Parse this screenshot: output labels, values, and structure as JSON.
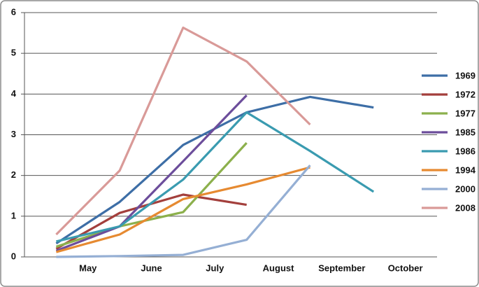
{
  "chart_data": {
    "type": "line",
    "categories": [
      "May",
      "June",
      "July",
      "August",
      "September",
      "October"
    ],
    "ylim": [
      0,
      6
    ],
    "yticks": [
      0,
      1,
      2,
      3,
      4,
      5,
      6
    ],
    "grid": true,
    "legend": "right",
    "series": [
      {
        "name": "1969",
        "color": "#3d6ea6",
        "values": [
          0.33,
          1.35,
          2.75,
          3.55,
          3.93,
          3.67
        ]
      },
      {
        "name": "1972",
        "color": "#a33f3c",
        "values": [
          0.2,
          1.08,
          1.53,
          1.28,
          null,
          null
        ]
      },
      {
        "name": "1977",
        "color": "#8cb04c",
        "values": [
          0.25,
          0.75,
          1.1,
          2.8,
          null,
          null
        ]
      },
      {
        "name": "1985",
        "color": "#6c4d9b",
        "values": [
          0.15,
          0.75,
          2.35,
          3.97,
          null,
          null
        ]
      },
      {
        "name": "1986",
        "color": "#3a9bb0",
        "values": [
          0.38,
          0.75,
          1.9,
          3.55,
          2.6,
          1.6
        ]
      },
      {
        "name": "1994",
        "color": "#e68a31",
        "values": [
          0.12,
          0.55,
          1.42,
          1.78,
          2.2,
          null
        ]
      },
      {
        "name": "2000",
        "color": "#95afd4",
        "values": [
          0,
          0.02,
          0.05,
          0.42,
          2.25,
          null
        ]
      },
      {
        "name": "2008",
        "color": "#d99a98",
        "values": [
          0.55,
          2.12,
          5.63,
          4.8,
          3.25,
          null
        ]
      }
    ]
  }
}
